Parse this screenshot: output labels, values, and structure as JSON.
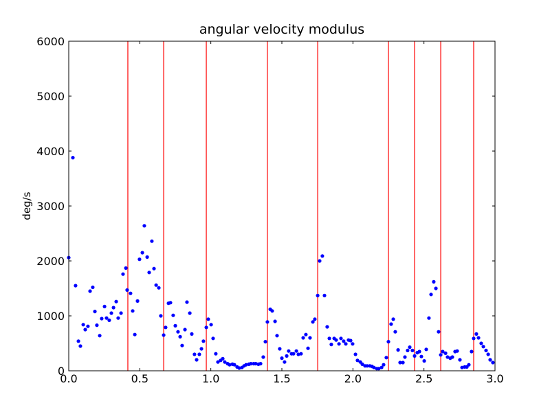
{
  "chart_data": {
    "type": "scatter",
    "title": "angular velocity modulus",
    "ylabel": "deg/s",
    "x": [
      0.0,
      0.029,
      0.048,
      0.068,
      0.082,
      0.102,
      0.116,
      0.135,
      0.15,
      0.169,
      0.184,
      0.198,
      0.218,
      0.232,
      0.252,
      0.266,
      0.285,
      0.3,
      0.315,
      0.334,
      0.348,
      0.368,
      0.382,
      0.402,
      0.411,
      0.435,
      0.45,
      0.465,
      0.484,
      0.498,
      0.518,
      0.532,
      0.552,
      0.566,
      0.585,
      0.6,
      0.615,
      0.634,
      0.648,
      0.668,
      0.682,
      0.702,
      0.716,
      0.735,
      0.75,
      0.769,
      0.784,
      0.798,
      0.818,
      0.832,
      0.852,
      0.866,
      0.885,
      0.9,
      0.919,
      0.934,
      0.948,
      0.968,
      0.982,
      1.002,
      1.016,
      1.035,
      1.05,
      1.069,
      1.084,
      1.098,
      1.118,
      1.132,
      1.152,
      1.166,
      1.185,
      1.2,
      1.219,
      1.234,
      1.248,
      1.268,
      1.282,
      1.302,
      1.316,
      1.335,
      1.35,
      1.369,
      1.384,
      1.398,
      1.418,
      1.432,
      1.452,
      1.466,
      1.485,
      1.5,
      1.519,
      1.534,
      1.548,
      1.568,
      1.582,
      1.602,
      1.616,
      1.635,
      1.65,
      1.669,
      1.684,
      1.698,
      1.718,
      1.732,
      1.752,
      1.766,
      1.785,
      1.8,
      1.819,
      1.834,
      1.848,
      1.868,
      1.882,
      1.902,
      1.916,
      1.935,
      1.95,
      1.969,
      1.984,
      1.998,
      2.018,
      2.032,
      2.052,
      2.066,
      2.085,
      2.1,
      2.119,
      2.134,
      2.148,
      2.168,
      2.182,
      2.202,
      2.216,
      2.235,
      2.25,
      2.269,
      2.284,
      2.298,
      2.318,
      2.332,
      2.352,
      2.366,
      2.385,
      2.4,
      2.419,
      2.434,
      2.453,
      2.468,
      2.482,
      2.502,
      2.516,
      2.535,
      2.55,
      2.569,
      2.584,
      2.603,
      2.618,
      2.632,
      2.652,
      2.666,
      2.685,
      2.7,
      2.719,
      2.734,
      2.753,
      2.768,
      2.787,
      2.802,
      2.816,
      2.835,
      2.85,
      2.869,
      2.884,
      2.903,
      2.918,
      2.937,
      2.952,
      2.966,
      2.985
    ],
    "series": [
      {
        "color": "#0000ff",
        "values": [
          2060,
          3880,
          1550,
          540,
          450,
          840,
          750,
          810,
          1450,
          1520,
          1080,
          830,
          640,
          950,
          1170,
          960,
          920,
          1050,
          1150,
          1260,
          960,
          1050,
          1760,
          1870,
          1470,
          1410,
          1090,
          660,
          1270,
          2030,
          2150,
          2640,
          2070,
          1790,
          2360,
          1860,
          1560,
          1510,
          1000,
          650,
          790,
          1230,
          1240,
          1010,
          820,
          710,
          620,
          460,
          750,
          1250,
          1050,
          670,
          300,
          200,
          300,
          400,
          540,
          790,
          940,
          840,
          590,
          310,
          160,
          190,
          220,
          160,
          130,
          110,
          120,
          110,
          70,
          50,
          60,
          90,
          110,
          120,
          130,
          130,
          130,
          120,
          130,
          250,
          530,
          890,
          1120,
          1090,
          900,
          640,
          400,
          230,
          160,
          270,
          360,
          310,
          310,
          360,
          300,
          310,
          600,
          660,
          410,
          600,
          890,
          940,
          1370,
          2000,
          2090,
          1370,
          800,
          590,
          480,
          590,
          560,
          490,
          590,
          540,
          490,
          560,
          550,
          490,
          300,
          190,
          160,
          120,
          90,
          90,
          90,
          80,
          60,
          40,
          40,
          60,
          110,
          240,
          530,
          850,
          940,
          710,
          380,
          150,
          150,
          250,
          370,
          430,
          370,
          270,
          330,
          350,
          260,
          180,
          390,
          960,
          1390,
          1620,
          1500,
          710,
          290,
          350,
          320,
          250,
          230,
          250,
          350,
          360,
          200,
          60,
          70,
          70,
          110,
          350,
          590,
          670,
          600,
          500,
          440,
          370,
          300,
          200,
          150
        ]
      }
    ],
    "vlines": {
      "color": "#ff0000",
      "x": [
        0.416,
        0.668,
        0.968,
        1.398,
        1.752,
        2.25,
        2.434,
        2.618,
        2.85
      ]
    },
    "xlim": [
      0,
      3
    ],
    "ylim": [
      0,
      6000
    ],
    "xticks": [
      {
        "value": 0,
        "label": "0.0"
      },
      0.5,
      {
        "value": 1,
        "label": "1.0"
      },
      1.5,
      {
        "value": 2,
        "label": "2.0"
      },
      2.5,
      {
        "value": 3,
        "label": "3.0"
      }
    ],
    "yticks": [
      0,
      1000,
      2000,
      3000,
      4000,
      5000,
      6000
    ]
  }
}
